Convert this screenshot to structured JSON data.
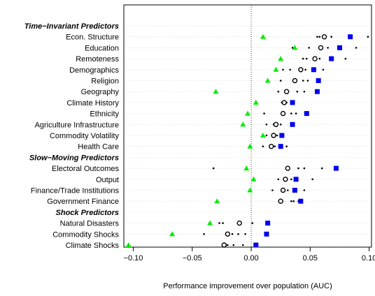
{
  "chart_data": {
    "type": "scatter",
    "xlabel": "Performance improvement over population (AUC)",
    "xlim": [
      -0.108,
      0.102
    ],
    "xticks": [
      -0.1,
      -0.05,
      0.0,
      0.05,
      0.1
    ],
    "xtick_labels": [
      "−0.10",
      "−0.05",
      "0.00",
      "0.05",
      "0.10"
    ],
    "reference_line_x": 0,
    "grid": "horizontal",
    "marker_colors": {
      "triangle": "#00ee00",
      "square": "#0000ee",
      "circle": "#000000",
      "dot": "#000000"
    },
    "rows": [
      {
        "label": "Time−Invariant Predictors",
        "header": true
      },
      {
        "label": "Econ. Structure",
        "triangle": 0.01,
        "circle": 0.062,
        "square": 0.084,
        "dots": [
          0.056,
          0.058,
          0.068,
          0.099
        ]
      },
      {
        "label": "Education",
        "triangle": 0.037,
        "circle": 0.059,
        "square": 0.075,
        "dots": [
          0.035,
          0.049,
          0.065,
          0.089
        ]
      },
      {
        "label": "Remoteness",
        "triangle": 0.025,
        "circle": 0.054,
        "square": 0.068,
        "dots": [
          0.044,
          0.047,
          0.058,
          0.08
        ]
      },
      {
        "label": "Demographics",
        "triangle": 0.021,
        "circle": 0.042,
        "square": 0.053,
        "dots": [
          0.027,
          0.033,
          0.046,
          0.061
        ]
      },
      {
        "label": "Religion",
        "triangle": 0.014,
        "circle": 0.037,
        "square": 0.057,
        "dots": [
          0.025,
          0.036,
          0.044,
          0.048
        ]
      },
      {
        "label": "Geography",
        "triangle": -0.03,
        "circle": 0.03,
        "square": 0.056,
        "dots": [
          0.023,
          0.039,
          0.045
        ]
      },
      {
        "label": "Climate History",
        "triangle": 0.004,
        "circle": 0.028,
        "square": 0.035,
        "dots": [
          0.026,
          0.03
        ]
      },
      {
        "label": "Ethnicity",
        "triangle": -0.003,
        "circle": 0.027,
        "square": 0.047,
        "dots": [
          0.011,
          0.034,
          0.038
        ]
      },
      {
        "label": "Agriculture Infrastructure",
        "triangle": -0.007,
        "circle": 0.021,
        "square": 0.035,
        "dots": [
          0.013,
          0.019,
          0.025
        ]
      },
      {
        "label": "Commodity Volatility",
        "triangle": 0.01,
        "circle": 0.019,
        "square": 0.026,
        "dots": [
          0.013,
          0.022,
          0.027
        ]
      },
      {
        "label": "Health Care",
        "triangle": -0.001,
        "circle": 0.017,
        "square": 0.025,
        "dots": [
          0.01,
          0.02,
          0.03
        ]
      },
      {
        "label": "Slow−Moving Predictors",
        "header": true
      },
      {
        "label": "Electoral Outcomes",
        "triangle": -0.004,
        "circle": 0.031,
        "square": 0.072,
        "dots": [
          -0.032,
          0.04,
          0.045,
          0.06
        ]
      },
      {
        "label": "Output",
        "triangle": 0.002,
        "circle": 0.029,
        "square": 0.038,
        "dots": [
          0.023,
          0.034,
          0.052
        ]
      },
      {
        "label": "Finance/Trade Institutions",
        "triangle": -0.001,
        "circle": 0.027,
        "square": 0.037,
        "dots": [
          0.018,
          0.031,
          0.045
        ]
      },
      {
        "label": "Government Finance",
        "triangle": -0.029,
        "circle": 0.025,
        "square": 0.042,
        "dots": [
          0.034,
          0.036,
          0.04
        ]
      },
      {
        "label": "Shock Predictors",
        "header": true
      },
      {
        "label": "Natural Disasters",
        "triangle": -0.035,
        "circle": -0.01,
        "square": 0.014,
        "dots": [
          -0.027,
          -0.024,
          0.001
        ]
      },
      {
        "label": "Commodity Shocks",
        "triangle": -0.067,
        "circle": -0.02,
        "square": 0.013,
        "dots": [
          -0.04,
          -0.016,
          -0.011,
          -0.005
        ]
      },
      {
        "label": "Climate Shocks",
        "triangle": -0.104,
        "circle": -0.023,
        "square": 0.004,
        "dots": [
          -0.02,
          -0.015,
          -0.007
        ]
      }
    ]
  }
}
